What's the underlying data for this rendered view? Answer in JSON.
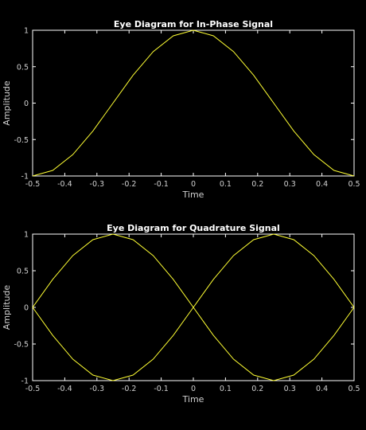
{
  "chart_data": [
    {
      "type": "line",
      "title": "Eye Diagram for In-Phase Signal",
      "xlabel": "Time",
      "ylabel": "Amplitude",
      "xlim": [
        -0.5,
        0.5
      ],
      "ylim": [
        -1,
        1
      ],
      "xticks": [
        "-0.5",
        "-0.4",
        "-0.3",
        "-0.2",
        "-0.1",
        "0",
        "0.1",
        "0.2",
        "0.3",
        "0.4",
        "0.5"
      ],
      "yticks": [
        "1",
        "0.5",
        "0",
        "-0.5",
        "-1"
      ],
      "grid": false,
      "color": "#ffff33",
      "series": [
        {
          "x": [
            -0.5,
            -0.4375,
            -0.375,
            -0.3125,
            -0.25,
            -0.1875,
            -0.125,
            -0.0625,
            0,
            0.0625,
            0.125,
            0.1875,
            0.25,
            0.3125,
            0.375,
            0.4375,
            0.5
          ],
          "y": [
            -1,
            -0.9239,
            -0.7071,
            -0.3827,
            0,
            0.3827,
            0.7071,
            0.9239,
            1,
            0.9239,
            0.7071,
            0.3827,
            0,
            -0.3827,
            -0.7071,
            -0.9239,
            -1
          ]
        }
      ]
    },
    {
      "type": "line",
      "title": "Eye Diagram for Quadrature Signal",
      "xlabel": "Time",
      "ylabel": "Amplitude",
      "xlim": [
        -0.5,
        0.5
      ],
      "ylim": [
        -1,
        1
      ],
      "xticks": [
        "-0.5",
        "-0.4",
        "-0.3",
        "-0.2",
        "-0.1",
        "0",
        "0.1",
        "0.2",
        "0.3",
        "0.4",
        "0.5"
      ],
      "yticks": [
        "1",
        "0.5",
        "0",
        "-0.5",
        "-1"
      ],
      "grid": false,
      "color": "#ffff33",
      "series": [
        {
          "x": [
            -0.5,
            -0.4375,
            -0.375,
            -0.3125,
            -0.25,
            -0.1875,
            -0.125,
            -0.0625,
            0,
            0.0625,
            0.125,
            0.1875,
            0.25,
            0.3125,
            0.375,
            0.4375,
            0.5
          ],
          "y": [
            0,
            0.3827,
            0.7071,
            0.9239,
            1,
            0.9239,
            0.7071,
            0.3827,
            0,
            -0.3827,
            -0.7071,
            -0.9239,
            -1,
            -0.9239,
            -0.7071,
            -0.3827,
            0
          ]
        },
        {
          "x": [
            -0.5,
            -0.4375,
            -0.375,
            -0.3125,
            -0.25,
            -0.1875,
            -0.125,
            -0.0625,
            0,
            0.0625,
            0.125,
            0.1875,
            0.25,
            0.3125,
            0.375,
            0.4375,
            0.5
          ],
          "y": [
            0,
            -0.3827,
            -0.7071,
            -0.9239,
            -1,
            -0.9239,
            -0.7071,
            -0.3827,
            0,
            0.3827,
            0.7071,
            0.9239,
            1,
            0.9239,
            0.7071,
            0.3827,
            0
          ]
        }
      ]
    }
  ]
}
